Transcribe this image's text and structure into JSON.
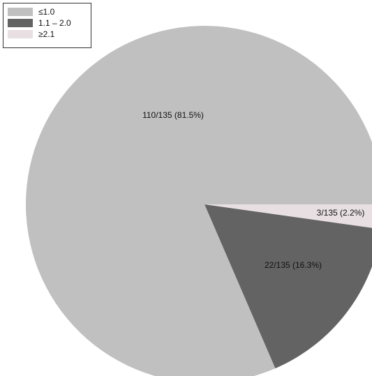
{
  "chart_data": {
    "type": "pie",
    "title": "",
    "legend_position": "top-left",
    "slices": [
      {
        "name": "≤1.0",
        "value": 110,
        "label": "110/135 (81.5%)",
        "color": "#c0c0c0"
      },
      {
        "name": "1.1 – 2.0",
        "value": 22,
        "label": "22/135 (16.3%)",
        "color": "#636363"
      },
      {
        "name": "≥2.1",
        "value": 3,
        "label": "3/135 (2.2%)",
        "color": "#e8dfe2"
      }
    ]
  },
  "legend": {
    "items": [
      {
        "label": "≤1.0",
        "color": "#c0c0c0"
      },
      {
        "label": "1.1 – 2.0",
        "color": "#636363"
      },
      {
        "label": "≥2.1",
        "color": "#e8dfe2"
      }
    ]
  }
}
